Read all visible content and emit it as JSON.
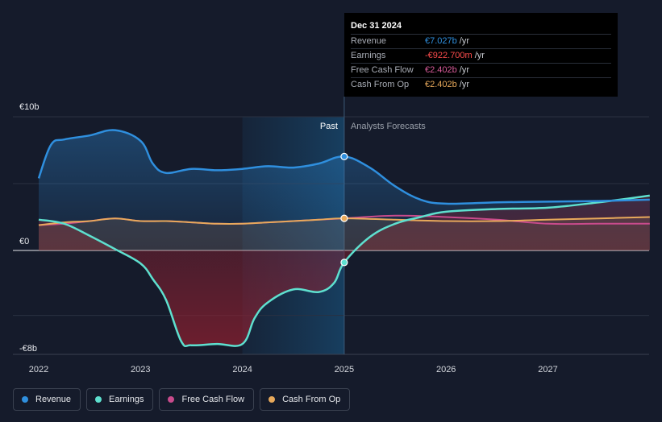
{
  "chart_data": {
    "type": "area",
    "unit_prefix": "€",
    "y_ticks": [
      {
        "value": 10,
        "label": "€10b"
      },
      {
        "value": 0,
        "label": "€0"
      },
      {
        "value": -8,
        "label": "-€8b"
      }
    ],
    "ylim": [
      -8,
      10
    ],
    "xlim": [
      2022,
      2028
    ],
    "x_ticks": [
      "2022",
      "2023",
      "2024",
      "2025",
      "2026",
      "2027"
    ],
    "past_label": "Past",
    "forecast_label": "Analysts Forecasts",
    "divider_x": 2025.0,
    "highlight_range": [
      2024.0,
      2025.0
    ],
    "series": [
      {
        "name": "Revenue",
        "color": "#2f8fde",
        "x": [
          2022.0,
          2022.12,
          2022.25,
          2022.5,
          2022.75,
          2023.0,
          2023.12,
          2023.25,
          2023.5,
          2023.75,
          2024.0,
          2024.25,
          2024.5,
          2024.75,
          2025.0,
          2025.25,
          2025.5,
          2025.75,
          2026.0,
          2026.5,
          2027.0,
          2027.5,
          2028.0
        ],
        "y": [
          5.4,
          7.9,
          8.3,
          8.6,
          9.0,
          8.2,
          6.5,
          5.8,
          6.1,
          6.0,
          6.1,
          6.3,
          6.2,
          6.5,
          7.027,
          6.2,
          4.8,
          3.8,
          3.5,
          3.6,
          3.65,
          3.7,
          3.8
        ]
      },
      {
        "name": "Earnings",
        "color": "#5ee0cf",
        "x": [
          2022.0,
          2022.25,
          2022.5,
          2022.75,
          2023.0,
          2023.12,
          2023.25,
          2023.4,
          2023.5,
          2023.75,
          2024.0,
          2024.12,
          2024.25,
          2024.5,
          2024.75,
          2024.9,
          2025.0,
          2025.25,
          2025.5,
          2025.75,
          2026.0,
          2026.5,
          2027.0,
          2027.5,
          2028.0
        ],
        "y": [
          2.3,
          2.0,
          1.1,
          0.1,
          -1.0,
          -2.2,
          -3.8,
          -7.0,
          -7.3,
          -7.2,
          -7.2,
          -5.2,
          -4.0,
          -3.0,
          -3.2,
          -2.5,
          -0.923,
          1.0,
          2.0,
          2.5,
          2.9,
          3.1,
          3.2,
          3.6,
          4.1
        ]
      },
      {
        "name": "Free Cash Flow",
        "color": "#c94b8c",
        "x": [
          2022.0,
          2022.25,
          2022.5,
          2022.75,
          2023.0,
          2023.25,
          2023.5,
          2023.75,
          2024.0,
          2024.25,
          2024.5,
          2024.75,
          2025.0,
          2025.5,
          2026.0,
          2026.5,
          2027.0,
          2027.5,
          2028.0
        ],
        "y": [
          1.9,
          2.0,
          2.2,
          2.4,
          2.2,
          2.2,
          2.1,
          2.0,
          2.0,
          2.1,
          2.2,
          2.3,
          2.402,
          2.6,
          2.5,
          2.3,
          2.0,
          2.0,
          2.0
        ]
      },
      {
        "name": "Cash From Op",
        "color": "#e8a95b",
        "x": [
          2022.0,
          2022.25,
          2022.5,
          2022.75,
          2023.0,
          2023.25,
          2023.5,
          2023.75,
          2024.0,
          2024.25,
          2024.5,
          2024.75,
          2025.0,
          2025.5,
          2026.0,
          2026.5,
          2027.0,
          2027.5,
          2028.0
        ],
        "y": [
          1.9,
          2.1,
          2.2,
          2.4,
          2.2,
          2.2,
          2.1,
          2.0,
          2.0,
          2.1,
          2.2,
          2.3,
          2.402,
          2.3,
          2.2,
          2.2,
          2.3,
          2.4,
          2.5
        ]
      }
    ]
  },
  "tooltip": {
    "date": "Dec 31 2024",
    "rows": [
      {
        "name": "Revenue",
        "value": "€7.027b",
        "unit": "/yr",
        "color": "#2f8fde"
      },
      {
        "name": "Earnings",
        "value": "-€922.700m",
        "unit": "/yr",
        "color": "#ff4d4d"
      },
      {
        "name": "Free Cash Flow",
        "value": "€2.402b",
        "unit": "/yr",
        "color": "#d85b9a"
      },
      {
        "name": "Cash From Op",
        "value": "€2.402b",
        "unit": "/yr",
        "color": "#e8a95b"
      }
    ]
  },
  "legend": [
    {
      "label": "Revenue",
      "color": "#2f8fde"
    },
    {
      "label": "Earnings",
      "color": "#5ee0cf"
    },
    {
      "label": "Free Cash Flow",
      "color": "#c94b8c"
    },
    {
      "label": "Cash From Op",
      "color": "#e8a95b"
    }
  ]
}
